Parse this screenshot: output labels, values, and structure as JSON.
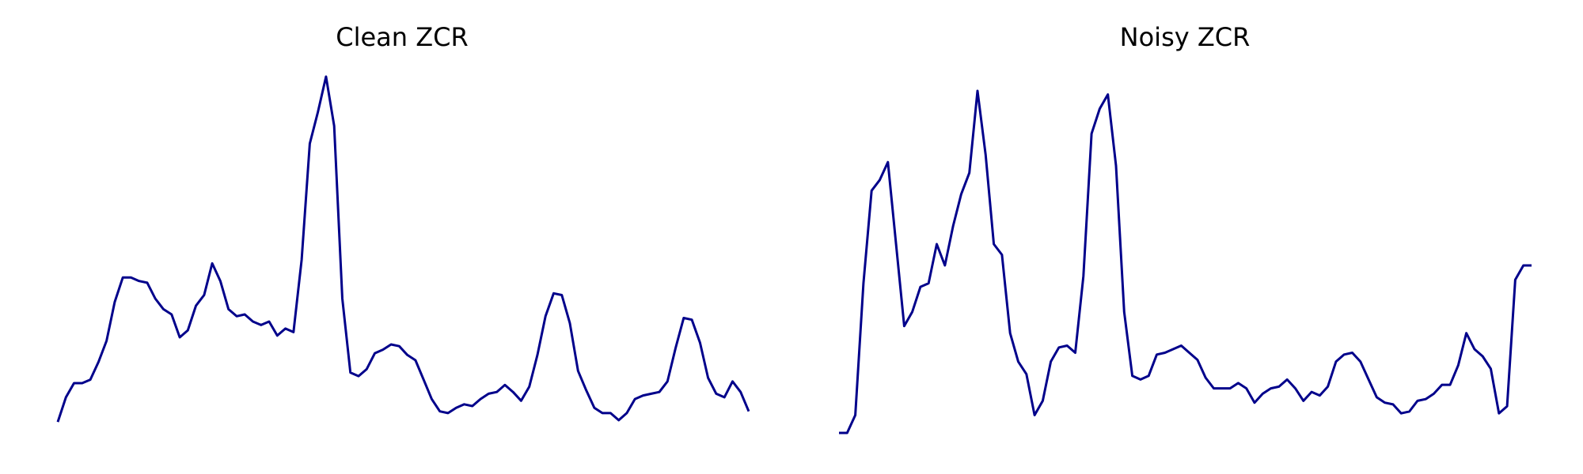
{
  "colors": {
    "line": "#00008b",
    "background": "#ffffff"
  },
  "chart_data": [
    {
      "type": "line",
      "title": "Clean ZCR",
      "xlabel": "",
      "ylabel": "",
      "axes": "off",
      "grid": false,
      "x": [
        0,
        1,
        2,
        3,
        4,
        5,
        6,
        7,
        8,
        9,
        10,
        11,
        12,
        13,
        14,
        15,
        16,
        17,
        18,
        19,
        20,
        21,
        22,
        23,
        24,
        25,
        26,
        27,
        28,
        29,
        30,
        31,
        32,
        33,
        34,
        35,
        36,
        37,
        38,
        39,
        40,
        41,
        42,
        43,
        44,
        45,
        46,
        47,
        48,
        49,
        50,
        51,
        52,
        53,
        54,
        55,
        56,
        57,
        58,
        59,
        60,
        61,
        62,
        63,
        64,
        65,
        66,
        67,
        68,
        69,
        70,
        71,
        72,
        73,
        74,
        75,
        76,
        77,
        78,
        79,
        80,
        81,
        82,
        83,
        84,
        85
      ],
      "ylim": [
        0.0,
        1.0
      ],
      "series": [
        {
          "values": [
            0.02,
            0.09,
            0.13,
            0.13,
            0.14,
            0.19,
            0.25,
            0.36,
            0.43,
            0.43,
            0.42,
            0.415,
            0.37,
            0.34,
            0.325,
            0.26,
            0.28,
            0.35,
            0.38,
            0.47,
            0.42,
            0.34,
            0.32,
            0.325,
            0.305,
            0.295,
            0.305,
            0.265,
            0.285,
            0.275,
            0.48,
            0.81,
            0.9,
            1.0,
            0.86,
            0.37,
            0.16,
            0.15,
            0.17,
            0.215,
            0.225,
            0.24,
            0.235,
            0.21,
            0.195,
            0.14,
            0.085,
            0.05,
            0.045,
            0.06,
            0.07,
            0.065,
            0.085,
            0.1,
            0.105,
            0.125,
            0.105,
            0.08,
            0.12,
            0.21,
            0.32,
            0.385,
            0.38,
            0.3,
            0.165,
            0.11,
            0.06,
            0.045,
            0.045,
            0.025,
            0.045,
            0.085,
            0.095,
            0.1,
            0.105,
            0.135,
            0.23,
            0.315,
            0.31,
            0.245,
            0.145,
            0.1,
            0.09,
            0.135,
            0.105,
            0.05
          ]
        }
      ]
    },
    {
      "type": "line",
      "title": "Noisy ZCR",
      "xlabel": "",
      "ylabel": "",
      "axes": "off",
      "grid": false,
      "x": [
        0,
        1,
        2,
        3,
        4,
        5,
        6,
        7,
        8,
        9,
        10,
        11,
        12,
        13,
        14,
        15,
        16,
        17,
        18,
        19,
        20,
        21,
        22,
        23,
        24,
        25,
        26,
        27,
        28,
        29,
        30,
        31,
        32,
        33,
        34,
        35,
        36,
        37,
        38,
        39,
        40,
        41,
        42,
        43,
        44,
        45,
        46,
        47,
        48,
        49,
        50,
        51,
        52,
        53,
        54,
        55,
        56,
        57,
        58,
        59,
        60,
        61,
        62,
        63,
        64,
        65,
        66,
        67,
        68,
        69,
        70,
        71,
        72,
        73,
        74,
        75,
        76,
        77,
        78,
        79,
        80,
        81,
        82,
        83,
        84,
        85
      ],
      "ylim": [
        0.0,
        1.0
      ],
      "series": [
        {
          "values": [
            0.0,
            0.0,
            0.05,
            0.42,
            0.68,
            0.71,
            0.76,
            0.53,
            0.3,
            0.34,
            0.41,
            0.42,
            0.53,
            0.47,
            0.58,
            0.67,
            0.73,
            0.96,
            0.78,
            0.53,
            0.5,
            0.28,
            0.2,
            0.165,
            0.05,
            0.09,
            0.2,
            0.24,
            0.245,
            0.225,
            0.44,
            0.84,
            0.91,
            0.95,
            0.75,
            0.34,
            0.16,
            0.15,
            0.16,
            0.22,
            0.225,
            0.235,
            0.245,
            0.225,
            0.205,
            0.155,
            0.125,
            0.125,
            0.125,
            0.14,
            0.125,
            0.085,
            0.11,
            0.125,
            0.13,
            0.15,
            0.125,
            0.09,
            0.115,
            0.105,
            0.13,
            0.2,
            0.22,
            0.225,
            0.2,
            0.15,
            0.1,
            0.085,
            0.08,
            0.055,
            0.06,
            0.09,
            0.095,
            0.11,
            0.135,
            0.135,
            0.19,
            0.28,
            0.235,
            0.215,
            0.18,
            0.055,
            0.075,
            0.43,
            0.47,
            0.47
          ]
        }
      ]
    }
  ]
}
